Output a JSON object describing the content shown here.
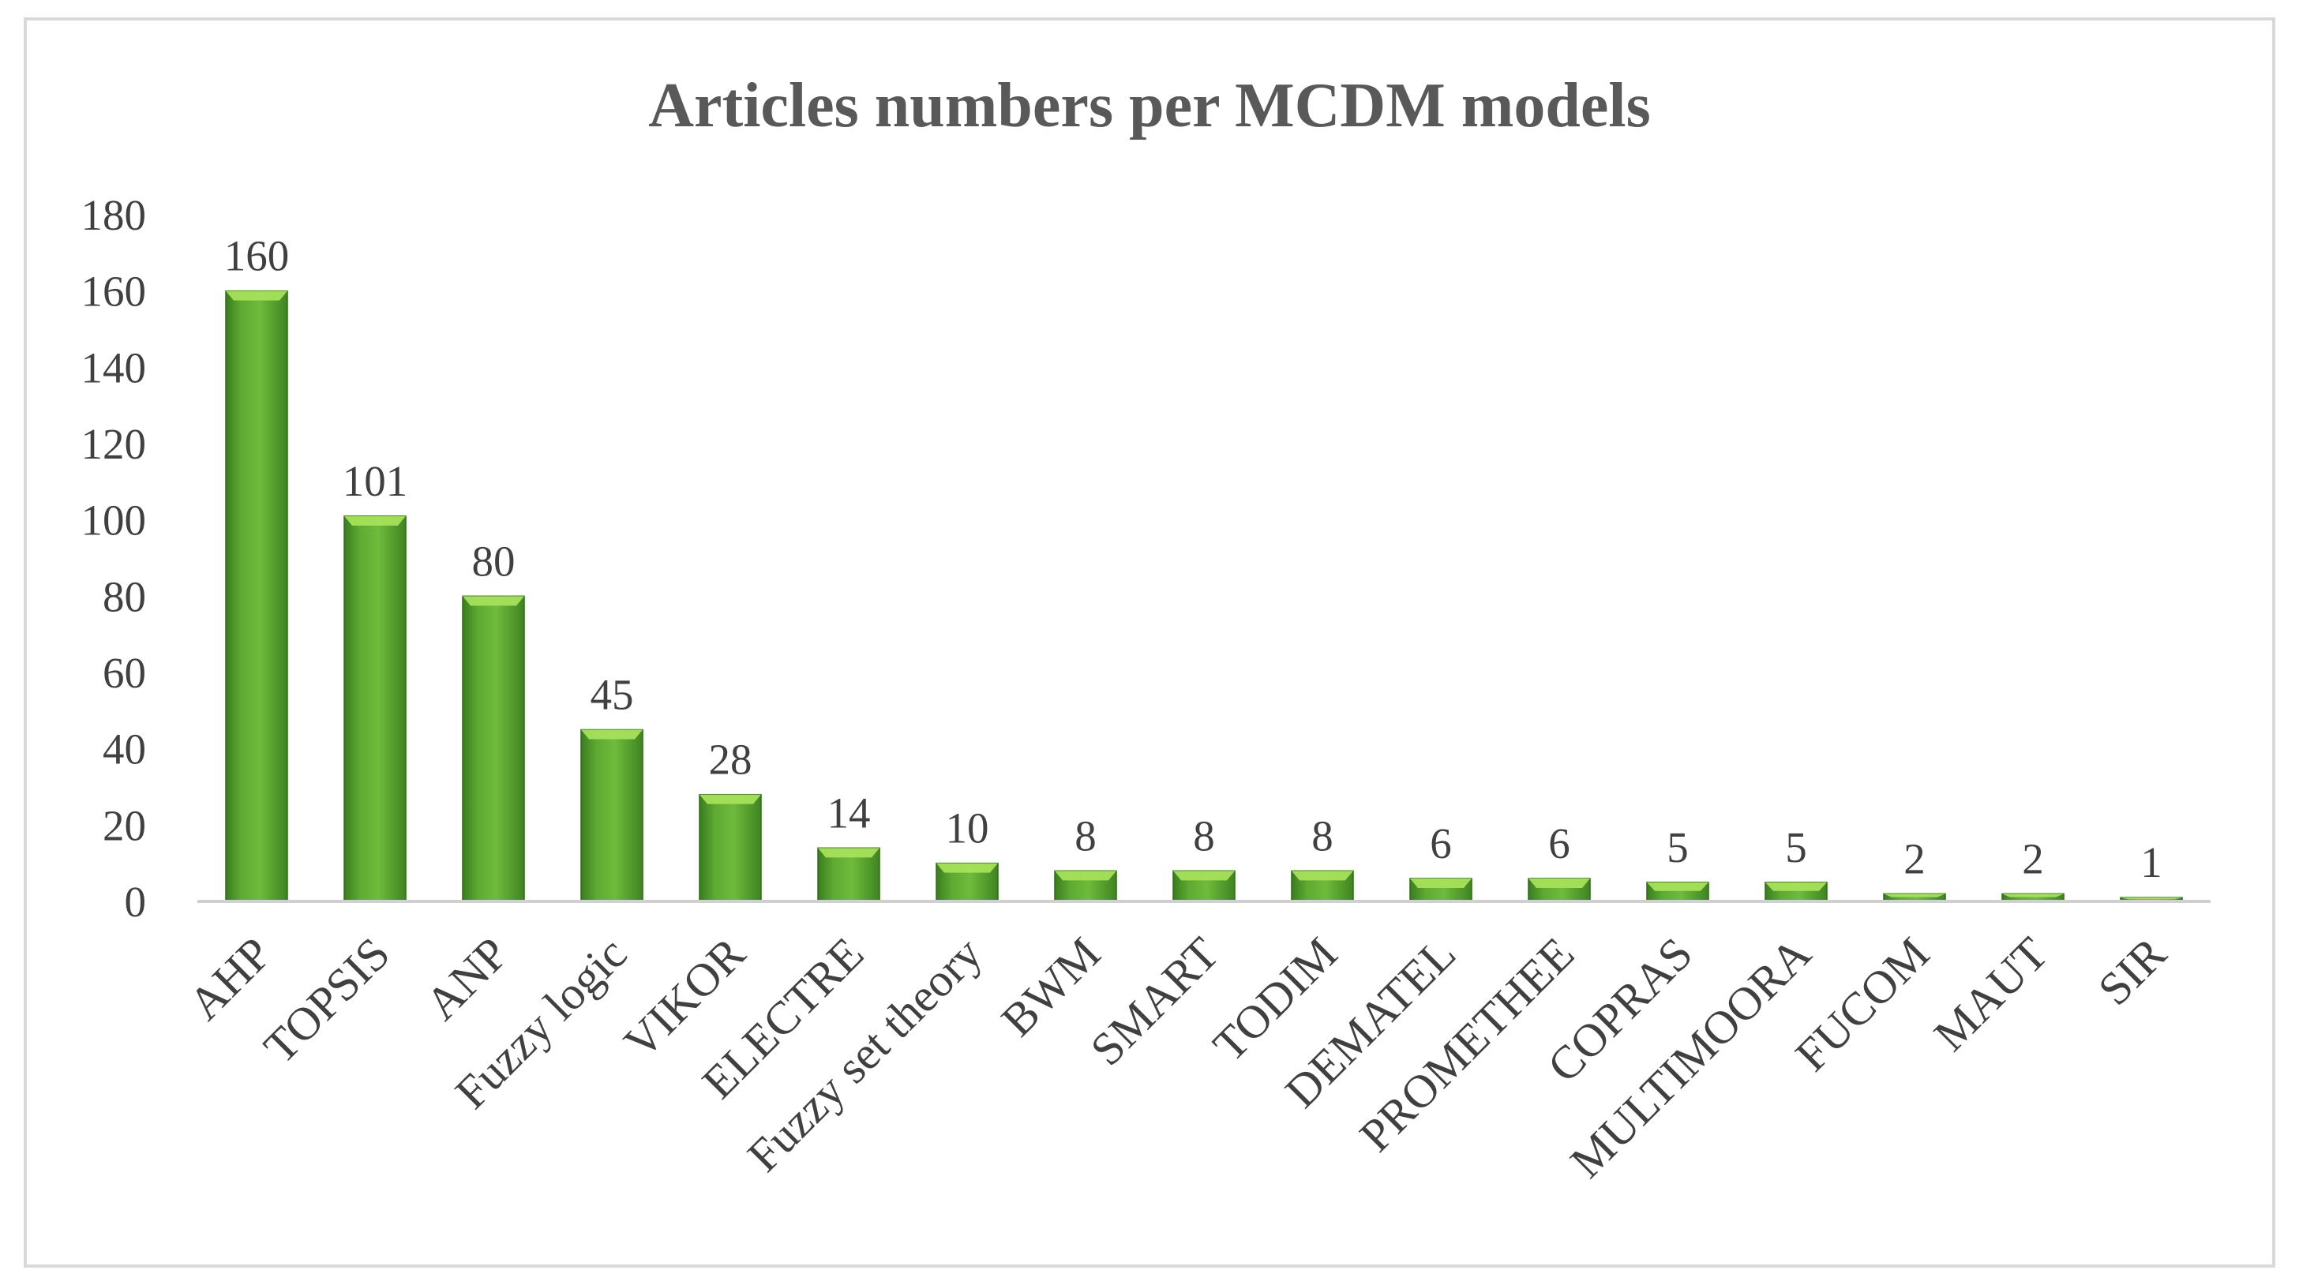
{
  "chart_data": {
    "type": "bar",
    "title": "Articles numbers per MCDM models",
    "xlabel": "",
    "ylabel": "",
    "categories": [
      "AHP",
      "TOPSIS",
      "ANP",
      "Fuzzy logic",
      "VIKOR",
      "ELECTRE",
      "Fuzzy set theory",
      "BWM",
      "SMART",
      "TODIM",
      "DEMATEL",
      "PROMETHEE",
      "COPRAS",
      "MULTIMOORA",
      "FUCOM",
      "MAUT",
      "SIR"
    ],
    "values": [
      160,
      101,
      80,
      45,
      28,
      14,
      10,
      8,
      8,
      8,
      6,
      6,
      5,
      5,
      2,
      2,
      1
    ],
    "ylim": [
      0,
      180
    ],
    "yticks": [
      0,
      20,
      40,
      60,
      80,
      100,
      120,
      140,
      160,
      180
    ],
    "data_labels": true,
    "grid": false,
    "legend": "none",
    "bar_color": "#4e9a2a",
    "bar_highlight": "#a6e05a"
  }
}
